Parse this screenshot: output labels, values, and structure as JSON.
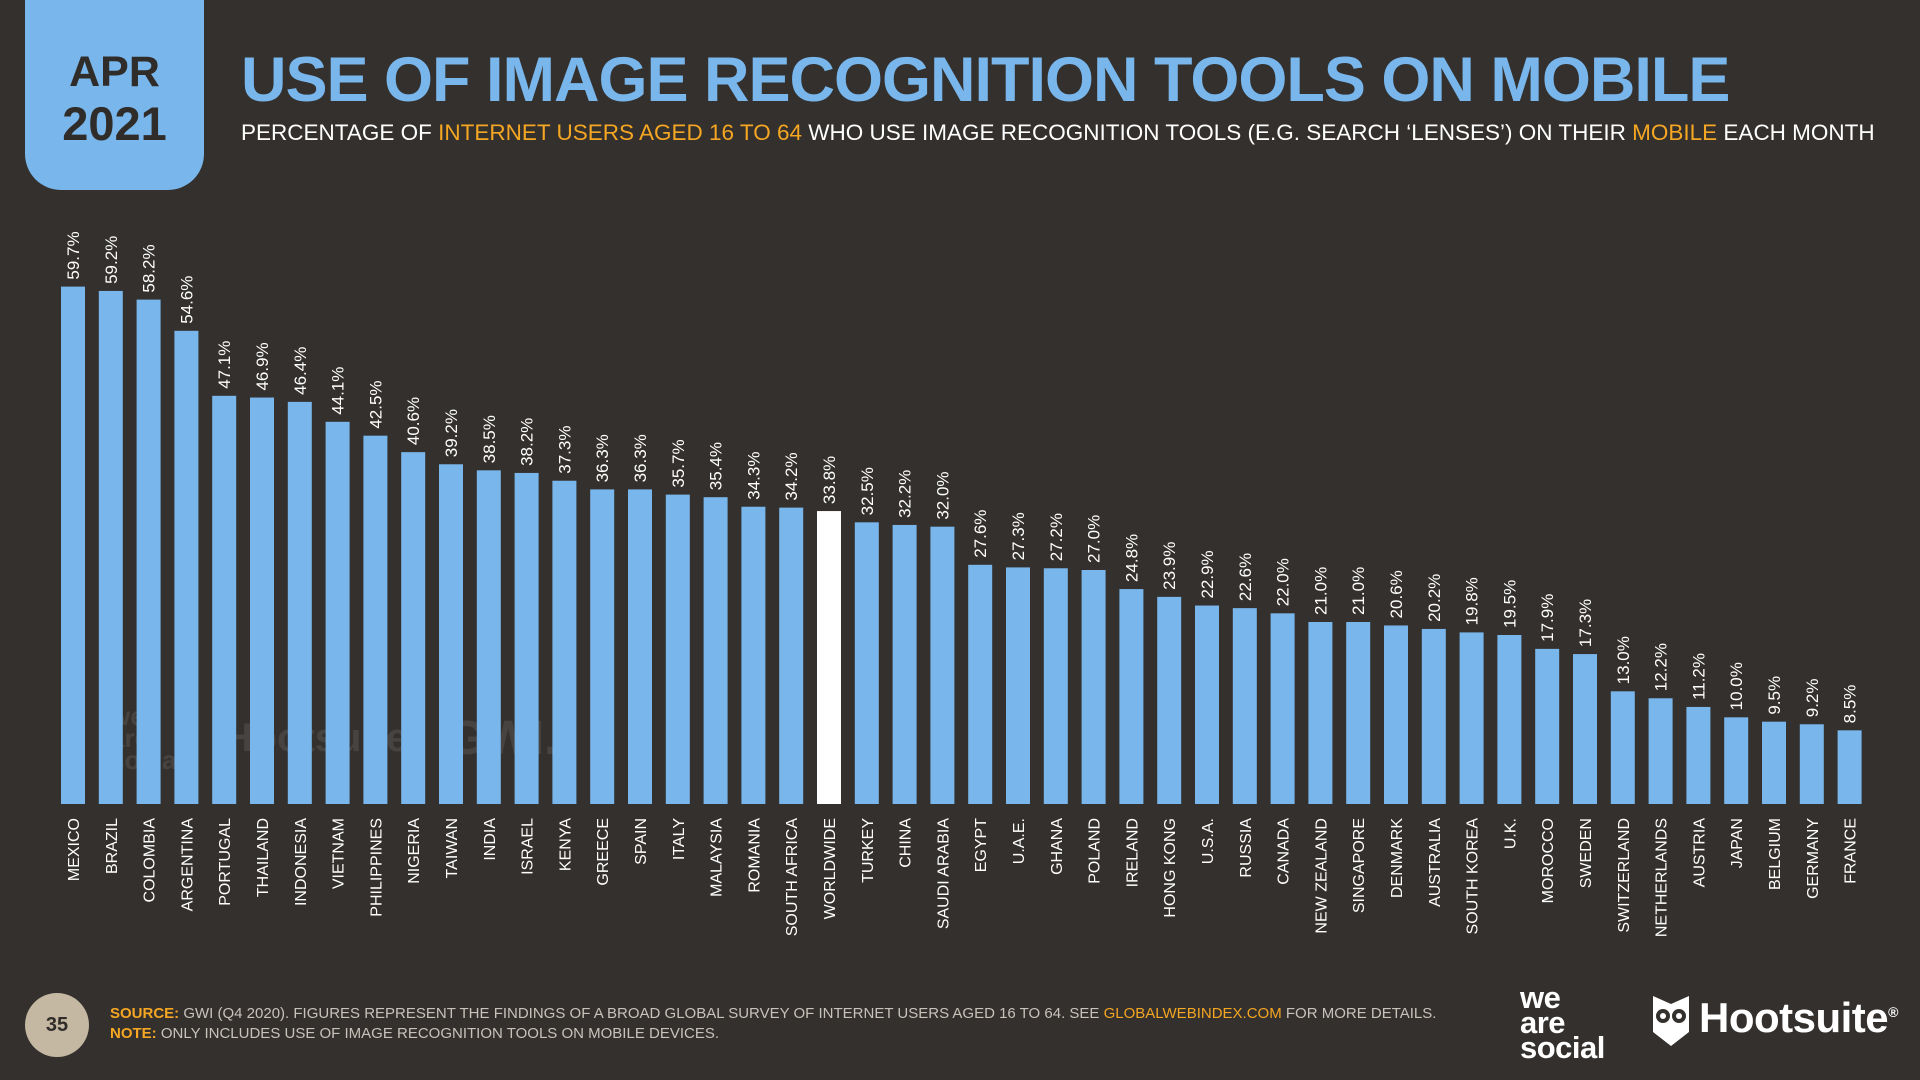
{
  "header": {
    "month": "APR",
    "year": "2021",
    "title": "USE OF IMAGE RECOGNITION TOOLS ON MOBILE",
    "subtitle_parts": [
      "PERCENTAGE OF ",
      "INTERNET USERS AGED 16 TO 64",
      " WHO USE IMAGE RECOGNITION TOOLS (E.G. SEARCH ‘LENSES’) ON THEIR ",
      "MOBILE",
      " EACH MONTH"
    ]
  },
  "chart_data": {
    "type": "bar",
    "title": "USE OF IMAGE RECOGNITION TOOLS ON MOBILE",
    "categories": [
      "MEXICO",
      "BRAZIL",
      "COLOMBIA",
      "ARGENTINA",
      "PORTUGAL",
      "THAILAND",
      "INDONESIA",
      "VIETNAM",
      "PHILIPPINES",
      "NIGERIA",
      "TAIWAN",
      "INDIA",
      "ISRAEL",
      "KENYA",
      "GREECE",
      "SPAIN",
      "ITALY",
      "MALAYSIA",
      "ROMANIA",
      "SOUTH AFRICA",
      "WORLDWIDE",
      "TURKEY",
      "CHINA",
      "SAUDI ARABIA",
      "EGYPT",
      "U.A.E.",
      "GHANA",
      "POLAND",
      "IRELAND",
      "HONG KONG",
      "U.S.A.",
      "RUSSIA",
      "CANADA",
      "NEW ZEALAND",
      "SINGAPORE",
      "DENMARK",
      "AUSTRALIA",
      "SOUTH KOREA",
      "U.K.",
      "MOROCCO",
      "SWEDEN",
      "SWITZERLAND",
      "NETHERLANDS",
      "AUSTRIA",
      "JAPAN",
      "BELGIUM",
      "GERMANY",
      "FRANCE"
    ],
    "values": [
      59.7,
      59.2,
      58.2,
      54.6,
      47.1,
      46.9,
      46.4,
      44.1,
      42.5,
      40.6,
      39.2,
      38.5,
      38.2,
      37.3,
      36.3,
      36.3,
      35.7,
      35.4,
      34.3,
      34.2,
      33.8,
      32.5,
      32.2,
      32.0,
      27.6,
      27.3,
      27.2,
      27.0,
      24.8,
      23.9,
      22.9,
      22.6,
      22.0,
      21.0,
      21.0,
      20.6,
      20.2,
      19.8,
      19.5,
      17.9,
      17.3,
      13.0,
      12.2,
      11.2,
      10.0,
      9.5,
      9.2,
      8.5
    ],
    "value_labels": [
      "59.7%",
      "59.2%",
      "58.2%",
      "54.6%",
      "47.1%",
      "46.9%",
      "46.4%",
      "44.1%",
      "42.5%",
      "40.6%",
      "39.2%",
      "38.5%",
      "38.2%",
      "37.3%",
      "36.3%",
      "36.3%",
      "35.7%",
      "35.4%",
      "34.3%",
      "34.2%",
      "33.8%",
      "32.5%",
      "32.2%",
      "32.0%",
      "27.6%",
      "27.3%",
      "27.2%",
      "27.0%",
      "24.8%",
      "23.9%",
      "22.9%",
      "22.6%",
      "22.0%",
      "21.0%",
      "21.0%",
      "20.6%",
      "20.2%",
      "19.8%",
      "19.5%",
      "17.9%",
      "17.3%",
      "13.0%",
      "12.2%",
      "11.2%",
      "10.0%",
      "9.5%",
      "9.2%",
      "8.5%"
    ],
    "highlight_category": "WORLDWIDE",
    "bar_color": "#78b6ec",
    "highlight_color": "#ffffff",
    "ylim": [
      0,
      60
    ],
    "grid": false
  },
  "watermark": {
    "was": "we\nare\nsocial",
    "hootsuite": "Hootsuite",
    "gwi": "GWI."
  },
  "footer": {
    "page_number": "35",
    "source_label": "SOURCE:",
    "source_text": " GWI (Q4 2020). FIGURES REPRESENT THE FINDINGS OF A BROAD GLOBAL SURVEY OF INTERNET USERS AGED 16 TO 64. SEE ",
    "source_link": "GLOBALWEBINDEX.COM",
    "source_tail": " FOR MORE DETAILS.",
    "note_label": "NOTE:",
    "note_text": " ONLY INCLUDES USE OF IMAGE RECOGNITION TOOLS ON MOBILE DEVICES.",
    "logo_was": "we\nare\nsocial",
    "logo_hootsuite": "Hootsuite",
    "logo_hootsuite_mark": "®"
  },
  "colors": {
    "background": "#33302d",
    "accent_blue": "#78b6ec",
    "accent_orange": "#f5a623"
  }
}
